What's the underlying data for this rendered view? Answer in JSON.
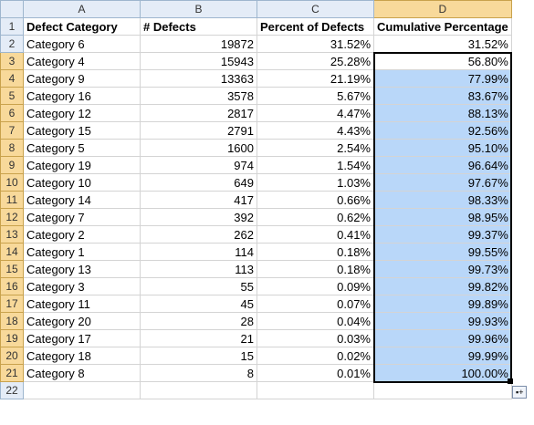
{
  "columns": [
    "A",
    "B",
    "C",
    "D"
  ],
  "header_row": {
    "row": "1",
    "a": "Defect Category",
    "b": "# Defects",
    "c": "Percent of Defects",
    "d": "Cumulative Percentage"
  },
  "rows": [
    {
      "row": "2",
      "a": "Category 6",
      "b": "19872",
      "c": "31.52%",
      "d": "31.52%"
    },
    {
      "row": "3",
      "a": "Category 4",
      "b": "15943",
      "c": "25.28%",
      "d": "56.80%"
    },
    {
      "row": "4",
      "a": "Category 9",
      "b": "13363",
      "c": "21.19%",
      "d": "77.99%"
    },
    {
      "row": "5",
      "a": "Category 16",
      "b": "3578",
      "c": "5.67%",
      "d": "83.67%"
    },
    {
      "row": "6",
      "a": "Category 12",
      "b": "2817",
      "c": "4.47%",
      "d": "88.13%"
    },
    {
      "row": "7",
      "a": "Category 15",
      "b": "2791",
      "c": "4.43%",
      "d": "92.56%"
    },
    {
      "row": "8",
      "a": "Category 5",
      "b": "1600",
      "c": "2.54%",
      "d": "95.10%"
    },
    {
      "row": "9",
      "a": "Category 19",
      "b": "974",
      "c": "1.54%",
      "d": "96.64%"
    },
    {
      "row": "10",
      "a": "Category 10",
      "b": "649",
      "c": "1.03%",
      "d": "97.67%"
    },
    {
      "row": "11",
      "a": "Category 14",
      "b": "417",
      "c": "0.66%",
      "d": "98.33%"
    },
    {
      "row": "12",
      "a": "Category 7",
      "b": "392",
      "c": "0.62%",
      "d": "98.95%"
    },
    {
      "row": "13",
      "a": "Category 2",
      "b": "262",
      "c": "0.41%",
      "d": "99.37%"
    },
    {
      "row": "14",
      "a": "Category 1",
      "b": "114",
      "c": "0.18%",
      "d": "99.55%"
    },
    {
      "row": "15",
      "a": "Category 13",
      "b": "113",
      "c": "0.18%",
      "d": "99.73%"
    },
    {
      "row": "16",
      "a": "Category 3",
      "b": "55",
      "c": "0.09%",
      "d": "99.82%"
    },
    {
      "row": "17",
      "a": "Category 11",
      "b": "45",
      "c": "0.07%",
      "d": "99.89%"
    },
    {
      "row": "18",
      "a": "Category 20",
      "b": "28",
      "c": "0.04%",
      "d": "99.93%"
    },
    {
      "row": "19",
      "a": "Category 17",
      "b": "21",
      "c": "0.03%",
      "d": "99.96%"
    },
    {
      "row": "20",
      "a": "Category 18",
      "b": "15",
      "c": "0.02%",
      "d": "99.99%"
    },
    {
      "row": "21",
      "a": "Category 8",
      "b": "8",
      "c": "0.01%",
      "d": "100.00%"
    }
  ],
  "empty_row": {
    "row": "22"
  },
  "selection": {
    "active_cell": "D3",
    "range": "D3:D21",
    "icon": "autofill-options-icon"
  },
  "colors": {
    "selection_fill": "#b9d7f9",
    "header_fill": "#e4ecf7",
    "highlight_header": "#f8d99a"
  }
}
